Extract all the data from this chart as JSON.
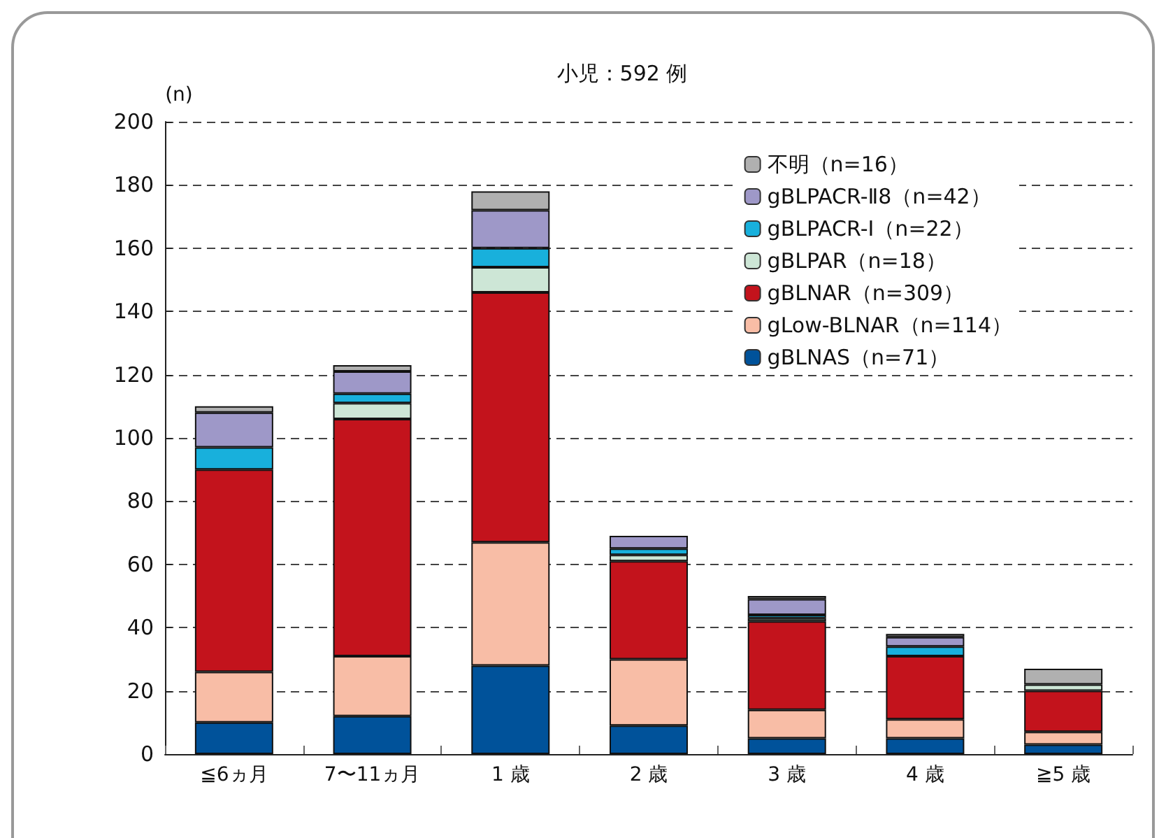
{
  "chart_data": {
    "type": "bar",
    "title": "小児：592 例",
    "ylabel": "(n)",
    "stacked": true,
    "categories": [
      "≦6ヵ月",
      "7〜11ヵ月",
      "1 歳",
      "2 歳",
      "3 歳",
      "4 歳",
      "≧5 歳"
    ],
    "series": [
      {
        "name": "gBLNAS（n=71）",
        "color": "#00529a",
        "values": [
          10,
          12,
          28,
          9,
          5,
          5,
          3
        ]
      },
      {
        "name": "gLow-BLNAR（n=114）",
        "color": "#f8bda6",
        "values": [
          16,
          19,
          39,
          21,
          9,
          6,
          4
        ]
      },
      {
        "name": "gBLNAR（n=309）",
        "color": "#c3131c",
        "values": [
          64,
          75,
          79,
          31,
          28,
          20,
          13
        ]
      },
      {
        "name": "gBLPAR（n=18）",
        "color": "#cde6d6",
        "values": [
          0,
          5,
          8,
          2,
          1,
          0,
          2
        ]
      },
      {
        "name": "gBLPACR-Ⅰ（n=22）",
        "color": "#18b0dc",
        "values": [
          7,
          3,
          6,
          2,
          1,
          3,
          0
        ]
      },
      {
        "name": "gBLPACR-Ⅱ8（n=42）",
        "color": "#9e98c8",
        "values": [
          11,
          7,
          12,
          4,
          5,
          3,
          0
        ]
      },
      {
        "name": "不明（n=16）",
        "color": "#b0b0b0",
        "values": [
          2,
          2,
          6,
          0,
          1,
          1,
          5
        ]
      }
    ],
    "ylim": [
      0,
      200
    ],
    "yticks": [
      0,
      20,
      40,
      60,
      80,
      100,
      120,
      140,
      160,
      180,
      200
    ],
    "grid": "y",
    "legend": "top right"
  }
}
